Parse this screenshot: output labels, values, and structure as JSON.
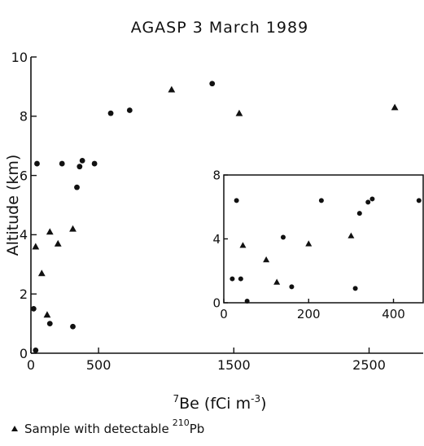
{
  "chart_data": [
    {
      "type": "scatter",
      "title": "AGASP  3  March 1989",
      "xlabel": "7Be (fCi m-3)",
      "ylabel": "Altitude (km)",
      "xlim": [
        0,
        2900
      ],
      "ylim": [
        0,
        10
      ],
      "x_ticks": [
        0,
        500,
        1500,
        2500
      ],
      "y_ticks": [
        0,
        2,
        4,
        6,
        8,
        10
      ],
      "grid": false,
      "series": [
        {
          "marker": "circle",
          "points": [
            {
              "x": 20,
              "y": 1.5
            },
            {
              "x": 35,
              "y": 0.1
            },
            {
              "x": 45,
              "y": 6.4
            },
            {
              "x": 140,
              "y": 1.0
            },
            {
              "x": 230,
              "y": 6.4
            },
            {
              "x": 310,
              "y": 0.9
            },
            {
              "x": 340,
              "y": 5.6
            },
            {
              "x": 360,
              "y": 6.3
            },
            {
              "x": 380,
              "y": 6.5
            },
            {
              "x": 470,
              "y": 6.4
            },
            {
              "x": 590,
              "y": 8.1
            },
            {
              "x": 730,
              "y": 8.2
            },
            {
              "x": 1340,
              "y": 9.1
            }
          ]
        },
        {
          "name": "Sample with detectable 210Pb",
          "marker": "triangle",
          "points": [
            {
              "x": 35,
              "y": 3.6
            },
            {
              "x": 80,
              "y": 2.7
            },
            {
              "x": 120,
              "y": 1.3
            },
            {
              "x": 140,
              "y": 4.1
            },
            {
              "x": 200,
              "y": 3.7
            },
            {
              "x": 310,
              "y": 4.2
            },
            {
              "x": 1040,
              "y": 8.9
            },
            {
              "x": 1540,
              "y": 8.1
            },
            {
              "x": 2690,
              "y": 8.3
            }
          ]
        }
      ],
      "legend": {
        "placement": "bottom-left",
        "label_prefix": "Sample with detectable",
        "superscript": "210",
        "suffix": "Pb"
      }
    },
    {
      "type": "scatter",
      "title": "",
      "xlabel": "",
      "ylabel": "",
      "xlim": [
        0,
        470
      ],
      "ylim": [
        0,
        8
      ],
      "x_ticks": [
        0,
        200,
        400
      ],
      "y_ticks": [
        0,
        4,
        8
      ],
      "grid": false,
      "placement": "inset lower-right",
      "series": [
        {
          "marker": "circle",
          "points": [
            {
              "x": 20,
              "y": 1.5
            },
            {
              "x": 30,
              "y": 6.4
            },
            {
              "x": 40,
              "y": 1.5
            },
            {
              "x": 55,
              "y": 0.1
            },
            {
              "x": 140,
              "y": 4.1
            },
            {
              "x": 160,
              "y": 1.0
            },
            {
              "x": 230,
              "y": 6.4
            },
            {
              "x": 310,
              "y": 0.9
            },
            {
              "x": 320,
              "y": 5.6
            },
            {
              "x": 340,
              "y": 6.3
            },
            {
              "x": 350,
              "y": 6.5
            },
            {
              "x": 460,
              "y": 6.4
            }
          ]
        },
        {
          "name": "Sample with detectable 210Pb",
          "marker": "triangle",
          "points": [
            {
              "x": 45,
              "y": 3.6
            },
            {
              "x": 100,
              "y": 2.7
            },
            {
              "x": 125,
              "y": 1.3
            },
            {
              "x": 200,
              "y": 3.7
            },
            {
              "x": 300,
              "y": 4.2
            }
          ]
        }
      ]
    }
  ],
  "labels": {
    "title": "AGASP  3  March 1989",
    "ylabel": "Altitude (km)",
    "xlabel_sup": "7",
    "xlabel_pre": "Be (fCi m",
    "xlabel_exp": "-3",
    "xlabel_post": ")"
  },
  "colors": {
    "ink": "#111111",
    "background": "#ffffff"
  }
}
